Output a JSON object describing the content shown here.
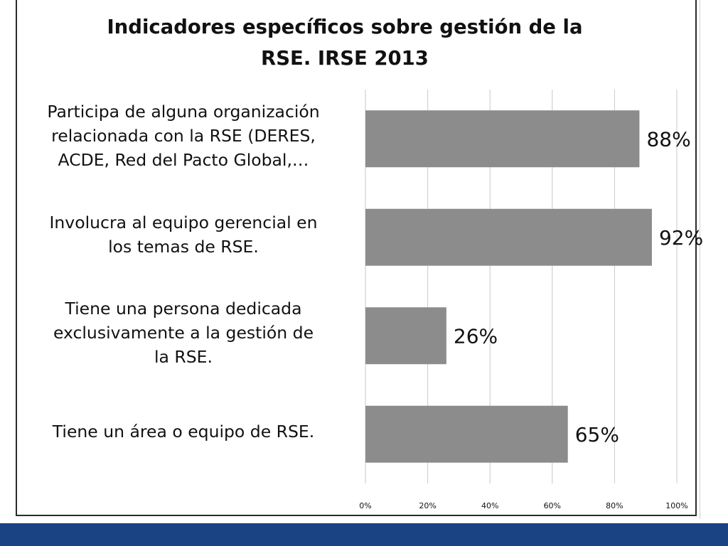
{
  "chart_data": {
    "type": "bar",
    "orientation": "horizontal",
    "title": [
      "Indicadores específicos sobre gestión de la",
      "RSE. IRSE 2013"
    ],
    "categories": [
      [
        "Participa de alguna organización",
        "relacionada con la RSE (DERES,",
        "ACDE, Red del Pacto Global,…"
      ],
      [
        "Involucra al equipo gerencial en",
        "los temas de RSE."
      ],
      [
        "Tiene una persona dedicada",
        "exclusivamente a la gestión de",
        "la RSE."
      ],
      [
        "Tiene un área o equipo de RSE."
      ]
    ],
    "values": [
      0.88,
      0.92,
      0.26,
      0.65
    ],
    "data_labels": [
      "88%",
      "92%",
      "26%",
      "65%"
    ],
    "x_ticks": [
      "0%",
      "20%",
      "40%",
      "60%",
      "80%",
      "100%"
    ],
    "xlim": [
      0,
      1
    ],
    "grid": "vertical",
    "legend": "none",
    "bar_color": "#8c8c8c",
    "grid_color": "#c8c8c8"
  },
  "colors": {
    "frame": "#2b2b2b",
    "footer_band": "#1a4384"
  }
}
